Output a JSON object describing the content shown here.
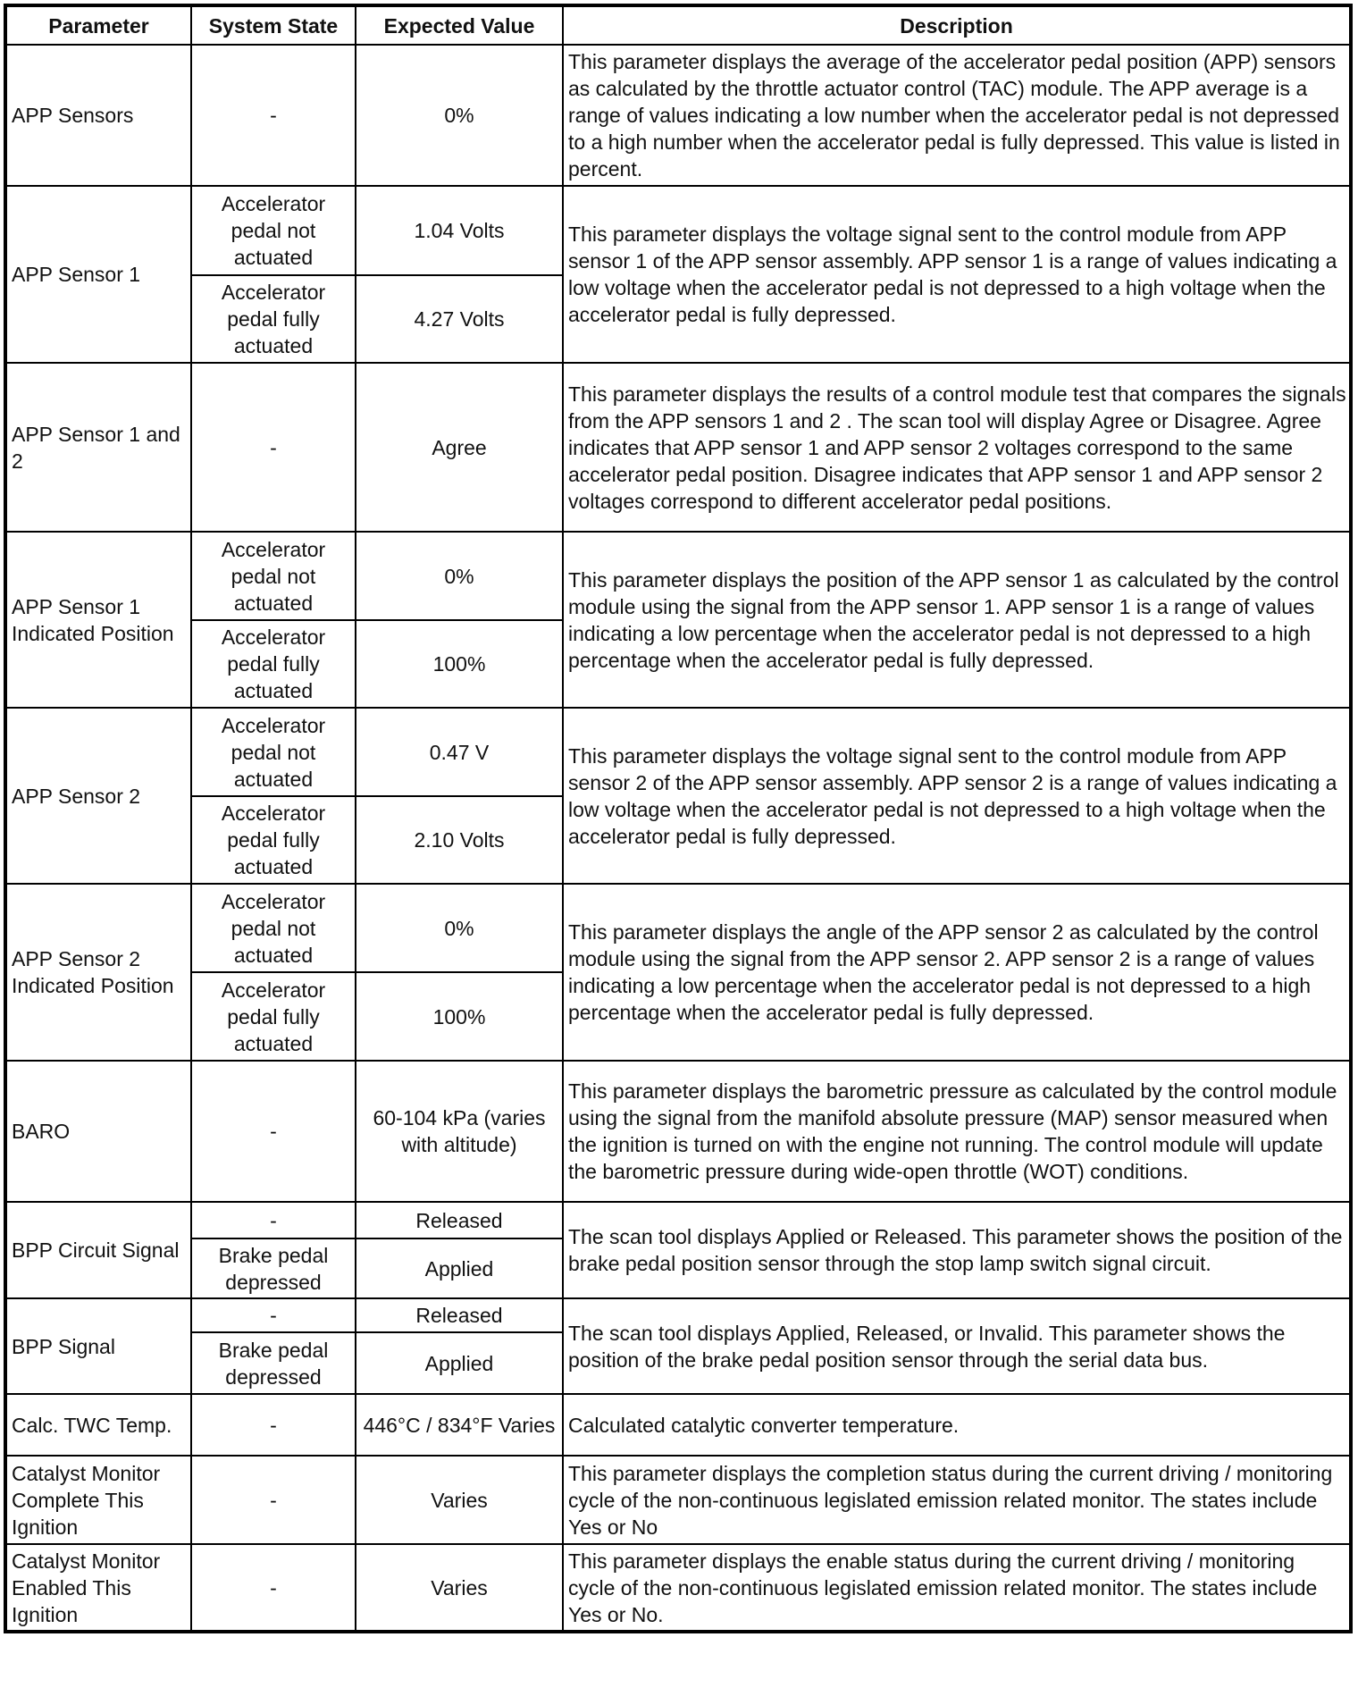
{
  "headers": [
    "Parameter",
    "System State",
    "Expected Value",
    "Description"
  ],
  "rows": [
    {
      "parameter": "APP Sensors",
      "states": [
        {
          "state": "-",
          "value": "0%"
        }
      ],
      "description": "This parameter displays the average of the accelerator pedal position (APP) sensors as calculated by the throttle actuator control (TAC) module. The APP average is a range of values indicating a low number when the accelerator pedal is not depressed to a high number when the accelerator pedal is fully depressed. This value is listed in percent."
    },
    {
      "parameter": "APP Sensor 1",
      "states": [
        {
          "state": "Accelerator pedal not actuated",
          "value": "1.04 Volts"
        },
        {
          "state": "Accelerator pedal fully actuated",
          "value": "4.27 Volts"
        }
      ],
      "description": "This parameter displays the voltage signal sent to the control module from APP sensor 1 of the APP sensor assembly. APP sensor 1 is a range of values indicating a low voltage when the accelerator pedal is not depressed to a high voltage when the accelerator pedal is fully depressed."
    },
    {
      "parameter": "APP Sensor 1 and 2",
      "states": [
        {
          "state": "-",
          "value": "Agree"
        }
      ],
      "description": "This parameter displays the results of a control module test that compares the signals from the APP sensors 1 and 2 . The scan tool will display Agree or Disagree. Agree indicates that APP sensor 1 and APP sensor 2 voltages correspond to the same accelerator pedal position. Disagree indicates that APP sensor 1 and APP sensor 2 voltages correspond to different accelerator pedal positions."
    },
    {
      "parameter": "APP Sensor 1 Indicated Position",
      "states": [
        {
          "state": "Accelerator pedal not actuated",
          "value": "0%"
        },
        {
          "state": "Accelerator pedal fully actuated",
          "value": "100%"
        }
      ],
      "description": "This parameter displays the position of the APP sensor 1 as calculated by the control module using the signal from the APP sensor 1. APP sensor 1 is a range of values indicating a low percentage when the accelerator pedal is not depressed to a high percentage when the accelerator pedal is fully depressed."
    },
    {
      "parameter": "APP Sensor 2",
      "states": [
        {
          "state": "Accelerator pedal not actuated",
          "value": "0.47 V"
        },
        {
          "state": "Accelerator pedal fully actuated",
          "value": "2.10 Volts"
        }
      ],
      "description": "This parameter displays the voltage signal sent to the control module from APP sensor 2 of the APP sensor assembly. APP sensor 2 is a range of values indicating a low voltage when the accelerator pedal is not depressed to a high voltage when the accelerator pedal is fully depressed."
    },
    {
      "parameter": "APP Sensor 2 Indicated Position",
      "states": [
        {
          "state": "Accelerator pedal not actuated",
          "value": "0%"
        },
        {
          "state": "Accelerator pedal fully actuated",
          "value": "100%"
        }
      ],
      "description": "This parameter displays the angle of the APP sensor 2 as calculated by the control module using the signal from the APP sensor 2. APP sensor 2 is a range of values indicating a low percentage when the accelerator pedal is not depressed to a high percentage when the accelerator pedal is fully depressed."
    },
    {
      "parameter": "BARO",
      "states": [
        {
          "state": "-",
          "value": "60-104 kPa (varies with altitude)"
        }
      ],
      "description": "This parameter displays the barometric pressure as calculated by the control module using the signal from the manifold absolute pressure (MAP) sensor measured when the ignition is turned on with the engine not running. The control module will update the barometric pressure during wide-open throttle (WOT) conditions."
    },
    {
      "parameter": "BPP Circuit Signal",
      "states": [
        {
          "state": "-",
          "value": "Released"
        },
        {
          "state": "Brake pedal depressed",
          "value": "Applied"
        }
      ],
      "description": "The scan tool displays Applied or Released. This parameter shows the position of the brake pedal position sensor through the stop lamp switch signal circuit."
    },
    {
      "parameter": "BPP Signal",
      "states": [
        {
          "state": "-",
          "value": "Released"
        },
        {
          "state": "Brake pedal depressed",
          "value": "Applied"
        }
      ],
      "description": "The scan tool displays Applied, Released, or Invalid. This parameter shows the position of the brake pedal position sensor through the serial data bus."
    },
    {
      "parameter": "Calc. TWC Temp.",
      "states": [
        {
          "state": "-",
          "value": "446°C / 834°F Varies"
        }
      ],
      "description": "Calculated catalytic converter temperature."
    },
    {
      "parameter": "Catalyst Monitor Complete This Ignition",
      "states": [
        {
          "state": "-",
          "value": "Varies"
        }
      ],
      "description": "This parameter displays the completion status during the current driving / monitoring cycle of the non-continuous legislated emission related monitor. The states include Yes or No"
    },
    {
      "parameter": "Catalyst Monitor Enabled This Ignition",
      "states": [
        {
          "state": "-",
          "value": "Varies"
        }
      ],
      "description": "This parameter displays the enable status during the current driving / monitoring cycle of the non-continuous legislated emission related monitor. The states include Yes or No."
    }
  ]
}
